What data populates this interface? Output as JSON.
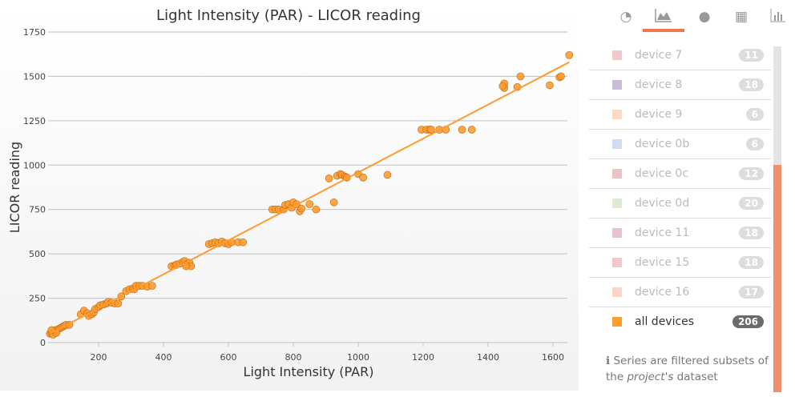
{
  "chart_data": {
    "type": "scatter",
    "title": "Light Intensity (PAR) - LICOR reading",
    "xlabel": "Light Intensity (PAR)",
    "ylabel": "LICOR reading",
    "xlim": [
      0,
      1650
    ],
    "ylim": [
      0,
      1750
    ],
    "xticks": [
      200,
      400,
      600,
      800,
      1000,
      1200,
      1400,
      1600
    ],
    "yticks": [
      0,
      250,
      500,
      750,
      1000,
      1250,
      1500,
      1750
    ],
    "grid": true,
    "series": [
      {
        "name": "all devices",
        "color": "#ff9b2f",
        "points": [
          [
            50,
            50
          ],
          [
            55,
            55
          ],
          [
            60,
            60
          ],
          [
            65,
            70
          ],
          [
            70,
            65
          ],
          [
            75,
            75
          ],
          [
            80,
            80
          ],
          [
            85,
            85
          ],
          [
            90,
            90
          ],
          [
            95,
            95
          ],
          [
            100,
            100
          ],
          [
            110,
            100
          ],
          [
            60,
            45
          ],
          [
            70,
            55
          ],
          [
            55,
            70
          ],
          [
            145,
            160
          ],
          [
            155,
            180
          ],
          [
            165,
            165
          ],
          [
            170,
            150
          ],
          [
            180,
            160
          ],
          [
            185,
            170
          ],
          [
            190,
            190
          ],
          [
            200,
            200
          ],
          [
            205,
            210
          ],
          [
            215,
            215
          ],
          [
            225,
            220
          ],
          [
            230,
            230
          ],
          [
            240,
            225
          ],
          [
            250,
            220
          ],
          [
            260,
            220
          ],
          [
            270,
            260
          ],
          [
            285,
            290
          ],
          [
            295,
            300
          ],
          [
            305,
            305
          ],
          [
            310,
            300
          ],
          [
            315,
            320
          ],
          [
            325,
            320
          ],
          [
            335,
            320
          ],
          [
            350,
            315
          ],
          [
            365,
            320
          ],
          [
            425,
            430
          ],
          [
            435,
            435
          ],
          [
            440,
            440
          ],
          [
            450,
            445
          ],
          [
            460,
            455
          ],
          [
            465,
            460
          ],
          [
            470,
            440
          ],
          [
            480,
            450
          ],
          [
            485,
            430
          ],
          [
            470,
            430
          ],
          [
            540,
            555
          ],
          [
            550,
            560
          ],
          [
            560,
            565
          ],
          [
            570,
            560
          ],
          [
            580,
            570
          ],
          [
            590,
            560
          ],
          [
            600,
            555
          ],
          [
            610,
            565
          ],
          [
            630,
            565
          ],
          [
            645,
            565
          ],
          [
            735,
            750
          ],
          [
            745,
            750
          ],
          [
            755,
            750
          ],
          [
            770,
            750
          ],
          [
            775,
            775
          ],
          [
            785,
            780
          ],
          [
            795,
            760
          ],
          [
            800,
            790
          ],
          [
            810,
            780
          ],
          [
            820,
            740
          ],
          [
            825,
            755
          ],
          [
            850,
            780
          ],
          [
            870,
            750
          ],
          [
            910,
            925
          ],
          [
            935,
            940
          ],
          [
            945,
            950
          ],
          [
            950,
            945
          ],
          [
            960,
            935
          ],
          [
            965,
            930
          ],
          [
            1000,
            950
          ],
          [
            1015,
            930
          ],
          [
            1090,
            945
          ],
          [
            925,
            790
          ],
          [
            1195,
            1200
          ],
          [
            1210,
            1200
          ],
          [
            1220,
            1200
          ],
          [
            1225,
            1200
          ],
          [
            1250,
            1200
          ],
          [
            1270,
            1200
          ],
          [
            1320,
            1200
          ],
          [
            1350,
            1200
          ],
          [
            1450,
            1460
          ],
          [
            1450,
            1435
          ],
          [
            1445,
            1445
          ],
          [
            1490,
            1440
          ],
          [
            1500,
            1500
          ],
          [
            1590,
            1450
          ],
          [
            1620,
            1495
          ],
          [
            1625,
            1500
          ],
          [
            1650,
            1620
          ]
        ]
      }
    ],
    "trendline": {
      "from": [
        50,
        50
      ],
      "to": [
        1650,
        1580
      ]
    }
  },
  "tabs": [
    {
      "icon": "dashboard-icon"
    },
    {
      "icon": "area-chart-icon",
      "active": true
    },
    {
      "icon": "globe-icon"
    },
    {
      "icon": "table-icon"
    },
    {
      "icon": "bar-chart-icon"
    }
  ],
  "legend": [
    {
      "label": "device 7",
      "count": "11",
      "color": "#f2c9cb"
    },
    {
      "label": "device 8",
      "count": "18",
      "color": "#c9bcd6"
    },
    {
      "label": "device 9",
      "count": "6",
      "color": "#fbd9c3"
    },
    {
      "label": "device 0b",
      "count": "6",
      "color": "#cfdcf5"
    },
    {
      "label": "device 0c",
      "count": "12",
      "color": "#ecc3c4"
    },
    {
      "label": "device 0d",
      "count": "20",
      "color": "#dcebd2"
    },
    {
      "label": "device 11",
      "count": "18",
      "color": "#e6c3c8"
    },
    {
      "label": "device 15",
      "count": "18",
      "color": "#f2c6cb"
    },
    {
      "label": "device 16",
      "count": "17",
      "color": "#fbd5c6"
    },
    {
      "label": "all devices",
      "count": "206",
      "color": "#ff9b2f",
      "active": true
    }
  ],
  "note": {
    "prefix": "Series are filtered subsets of the ",
    "em": "project's",
    "suffix": " dataset"
  }
}
